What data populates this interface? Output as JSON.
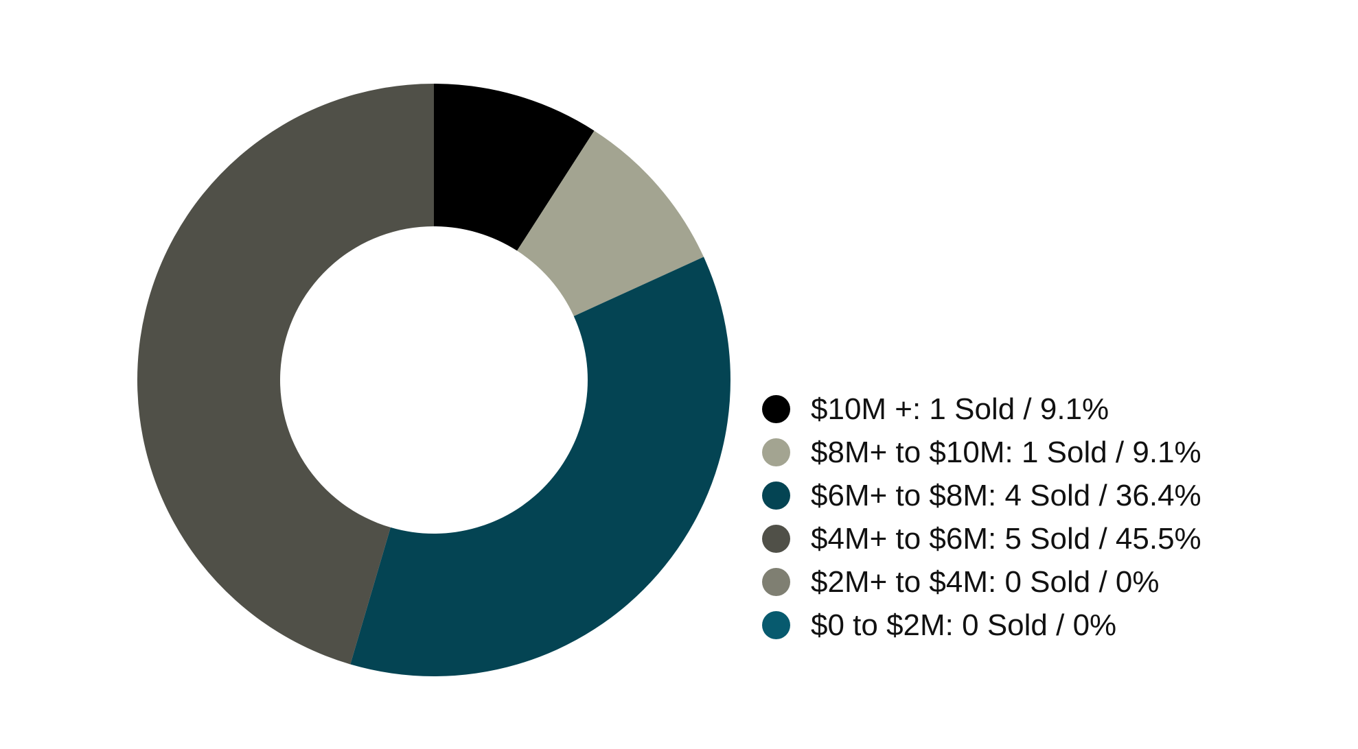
{
  "chart_data": {
    "type": "pie",
    "variant": "donut",
    "legend_position": "right",
    "start_angle": "top (12 o'clock), clockwise",
    "slices": [
      {
        "label": "$10M +: 1 Sold / 9.1%",
        "count": 1,
        "percent": 9.1,
        "color": "#000000"
      },
      {
        "label": "$8M+ to $10M: 1 Sold / 9.1%",
        "count": 1,
        "percent": 9.1,
        "color": "#a3a491"
      },
      {
        "label": "$6M+ to $8M: 4 Sold / 36.4%",
        "count": 4,
        "percent": 36.4,
        "color": "#044453"
      },
      {
        "label": "$4M+ to $6M: 5 Sold / 45.5%",
        "count": 5,
        "percent": 45.5,
        "color": "#505048"
      },
      {
        "label": "$2M+ to $4M: 0 Sold / 0%",
        "count": 0,
        "percent": 0,
        "color": "#7f7f72"
      },
      {
        "label": "$0 to $2M: 0 Sold / 0%",
        "count": 0,
        "percent": 0,
        "color": "#075a6e"
      }
    ]
  }
}
